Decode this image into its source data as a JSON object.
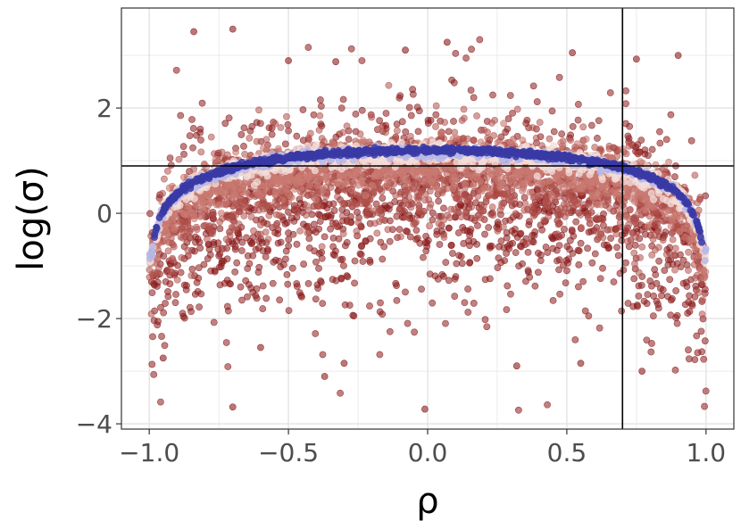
{
  "chart_data": {
    "type": "scatter",
    "title": "",
    "xlabel": "ρ",
    "ylabel": "log(σ)",
    "xlim": [
      -1.1,
      1.1
    ],
    "ylim": [
      -4.1,
      3.9
    ],
    "x_ticks": [
      -1.0,
      -0.5,
      0.0,
      0.5,
      1.0
    ],
    "x_tick_labels": [
      "−1.0",
      "−0.5",
      "0.0",
      "0.5",
      "1.0"
    ],
    "y_ticks": [
      -4,
      -2,
      0,
      2
    ],
    "y_tick_labels": [
      "−4",
      "−2",
      "0",
      "2"
    ],
    "grid": true,
    "legend": "none",
    "reference_lines": [
      {
        "orientation": "vertical",
        "x": 0.7
      },
      {
        "orientation": "horizontal",
        "y": 0.9
      }
    ],
    "color_scale": [
      "#8b1a1a",
      "#c97a72",
      "#f3dcd8",
      "#b7b7e6",
      "#3a3aa6"
    ],
    "band_shape": "log(σ) ≈ 1.2 + 0.5·ln(1 − ρ²); blue points concentrate on this curve, red points scatter widely",
    "sample_points": [
      {
        "x": -0.84,
        "y": 3.45
      },
      {
        "x": -0.7,
        "y": 3.5
      },
      {
        "x": -0.5,
        "y": 2.9
      },
      {
        "x": -0.33,
        "y": 2.88
      },
      {
        "x": -0.08,
        "y": 3.1
      },
      {
        "x": 0.07,
        "y": 3.25
      },
      {
        "x": 0.52,
        "y": 3.05
      },
      {
        "x": 0.75,
        "y": 2.93
      },
      {
        "x": 0.9,
        "y": 3.0
      },
      {
        "x": -0.95,
        "y": -2.75
      },
      {
        "x": -0.7,
        "y": -3.68
      },
      {
        "x": -0.37,
        "y": -3.1
      },
      {
        "x": -0.01,
        "y": -3.72
      },
      {
        "x": 0.32,
        "y": -2.9
      },
      {
        "x": 0.77,
        "y": -3.0
      },
      {
        "x": 0.55,
        "y": -2.85
      },
      {
        "x": -0.6,
        "y": -2.55
      },
      {
        "x": -0.3,
        "y": -2.85
      }
    ]
  }
}
